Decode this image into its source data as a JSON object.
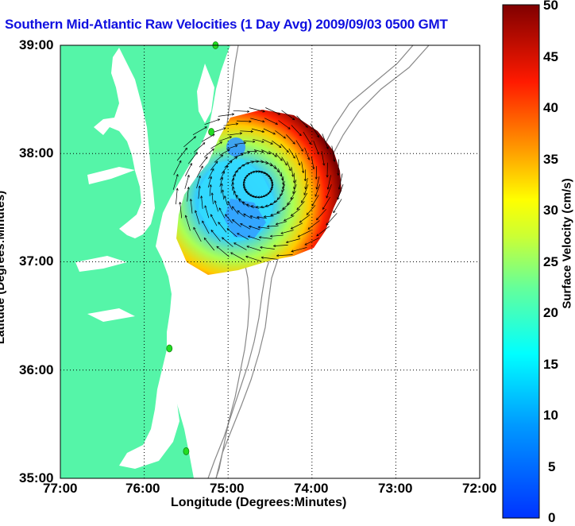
{
  "map": {
    "title": "Southern Mid-Atlantic Raw Velocities (1 Day Avg) 2009/09/03 0500 GMT",
    "xlabel": "Longitude (Degrees:Minutes)",
    "ylabel": "Latitude (Degrees:Minutes)",
    "x_ticks": [
      "77:00",
      "76:00",
      "75:00",
      "74:00",
      "73:00",
      "72:00"
    ],
    "y_ticks": [
      "39:00",
      "38:00",
      "37:00",
      "36:00",
      "35:00"
    ],
    "x_range_lon": [
      -77,
      -72
    ],
    "y_range_lat": [
      35,
      39
    ],
    "land_color": "#55f5a8",
    "grid": "dotted",
    "colorbar": {
      "label": "Surface Velocity (cm/s)",
      "ticks": [
        "50",
        "45",
        "40",
        "35",
        "30",
        "25",
        "20",
        "15",
        "10",
        "5",
        "0"
      ],
      "range": [
        0,
        50
      ],
      "colormap": "jet"
    },
    "station_markers": [
      {
        "lon": -75.15,
        "lat": 39.0
      },
      {
        "lon": -75.2,
        "lat": 38.2
      },
      {
        "lon": -75.7,
        "lat": 36.2
      },
      {
        "lon": -75.5,
        "lat": 35.25
      }
    ]
  }
}
